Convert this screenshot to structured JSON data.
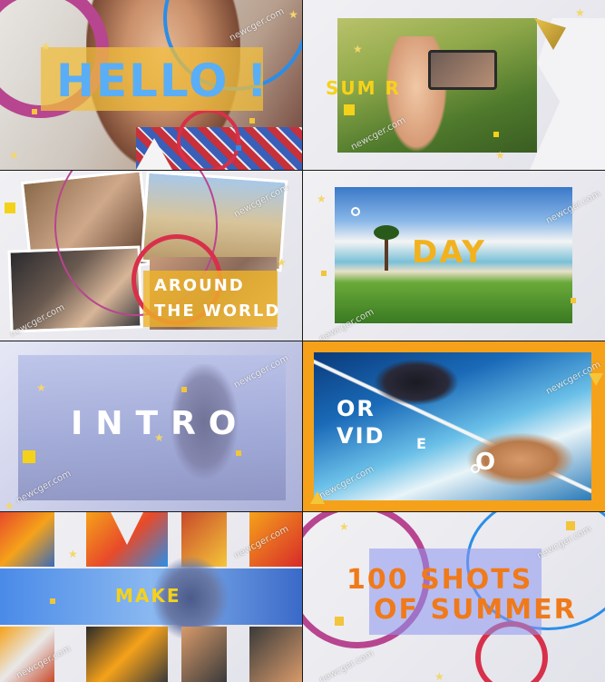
{
  "panels": [
    {
      "id": "hello",
      "text": "HELLO !",
      "text_color": "#5aaef5"
    },
    {
      "id": "summer",
      "text": "SUM     R",
      "text_color": "#f5d21a"
    },
    {
      "id": "around",
      "line1": "AROUND",
      "line2": "THE WORLD",
      "text_color": "#ffffff"
    },
    {
      "id": "day",
      "text": "DAY",
      "text_color": "#f2b21e"
    },
    {
      "id": "intro",
      "text": "INTRO",
      "text_color": "#ffffff"
    },
    {
      "id": "video",
      "line1": "OR",
      "line2": "VID",
      "line3": "E",
      "line4": "O",
      "text_color": "#ffffff"
    },
    {
      "id": "make",
      "text": "MAKE",
      "text_color": "#f5d21a"
    },
    {
      "id": "shots",
      "line1": "100 SHOTS",
      "line2": "OF SUMMER",
      "text_color": "#f07a1a"
    }
  ],
  "watermark": "newcger.com",
  "colors": {
    "purple": "#b8458f",
    "blue": "#2a8ee8",
    "red": "#d8304a",
    "yellow": "#f2c53a",
    "orange": "#f5a21a"
  }
}
